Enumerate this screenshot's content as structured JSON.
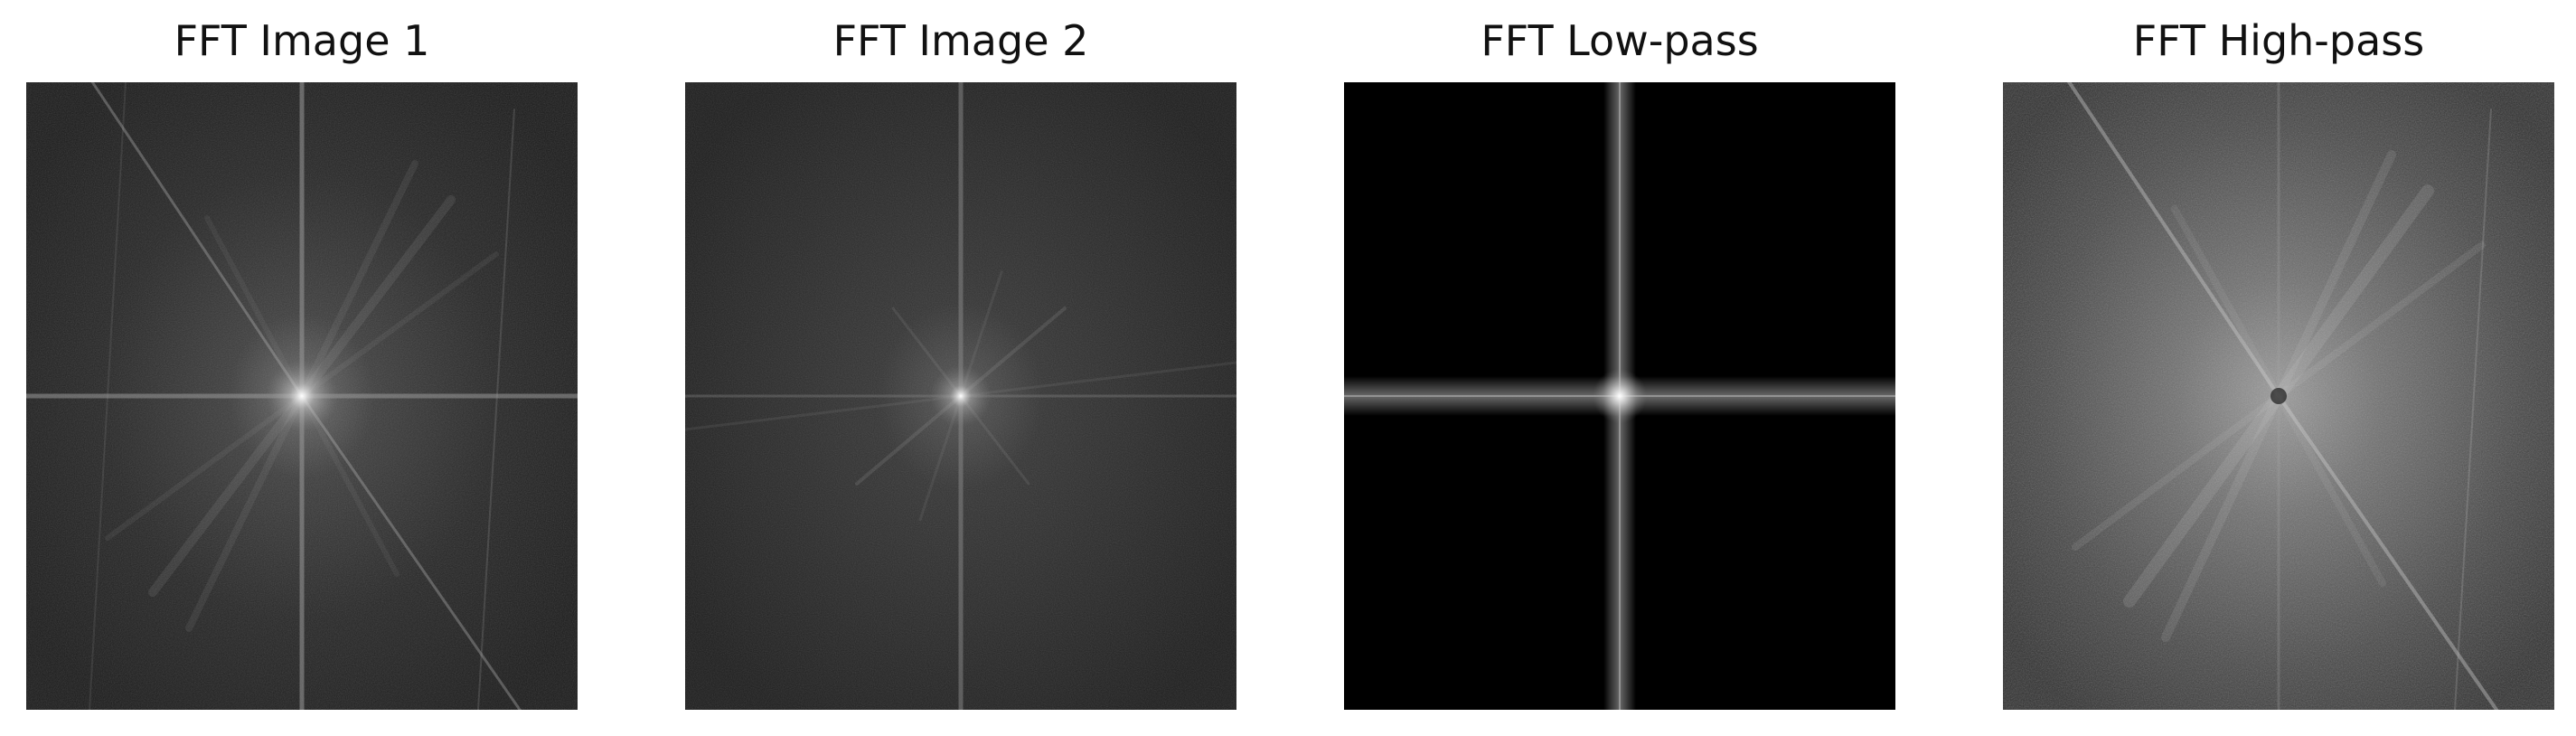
{
  "panels": [
    {
      "title": "FFT Image 1",
      "background": "#1e1e1e",
      "ray_color": "#bdbdbd",
      "line_color": "#9a9a9a"
    },
    {
      "title": "FFT Image 2",
      "background": "#202020",
      "ray_color": "#a8a8a8",
      "line_color": "#8c8c8c"
    },
    {
      "title": "FFT Low-pass",
      "background": "#000000",
      "ray_color": "#d6d6d6",
      "line_color": "#bfbfbf"
    },
    {
      "title": "FFT High-pass",
      "background": "#3a3a3a",
      "ray_color": "#cfcfcf",
      "line_color": "#a8a8a8"
    }
  ],
  "colors": {
    "page_background": "#ffffff",
    "title_text": "#111111"
  }
}
